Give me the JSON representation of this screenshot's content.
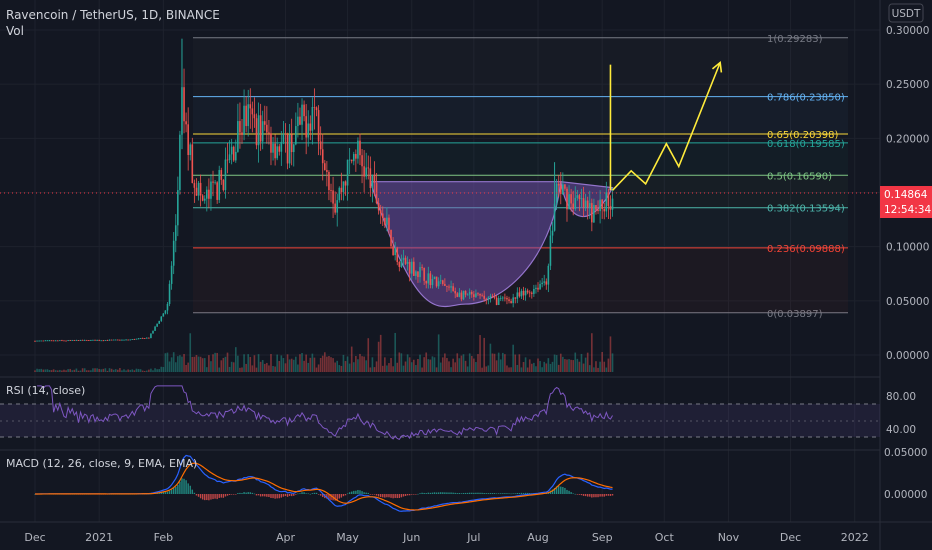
{
  "header": {
    "symbol": "Ravencoin / TetherUS, 1D, BINANCE",
    "vol_label": "Vol",
    "currency": "USDT"
  },
  "price_axis": {
    "ticks": [
      "0.30000",
      "0.25000",
      "0.20000",
      "0.15000",
      "0.10000",
      "0.05000",
      "0.00000"
    ],
    "current_price": "0.14864",
    "countdown": "12:54:34"
  },
  "fib_levels": [
    {
      "label": "1(0.29283)",
      "value": 0.29283,
      "color": "#787b86"
    },
    {
      "label": "0.786(0.23850)",
      "value": 0.2385,
      "color": "#64b5f6"
    },
    {
      "label": "0.65(0.20398)",
      "value": 0.20398,
      "color": "#fdd835"
    },
    {
      "label": "0.618(0.19585)",
      "value": 0.19585,
      "color": "#26a69a"
    },
    {
      "label": "0.5(0.16590)",
      "value": 0.1659,
      "color": "#81c784"
    },
    {
      "label": "0.382(0.13594)",
      "value": 0.13594,
      "color": "#4db6ac"
    },
    {
      "label": "0.236(0.09888)",
      "value": 0.09888,
      "color": "#f44336"
    },
    {
      "label": "0(0.03897)",
      "value": 0.03897,
      "color": "#787b86"
    }
  ],
  "rsi": {
    "label": "RSI (14, close)",
    "ticks": [
      "80.00",
      "40.00"
    ]
  },
  "macd": {
    "label": "MACD (12, 26, close, 9, EMA, EMA)",
    "ticks": [
      "0.05000",
      "0.00000"
    ]
  },
  "time_axis": {
    "labels": [
      "Dec",
      "2021",
      "Feb",
      "Apr",
      "May",
      "Jun",
      "Jul",
      "Aug",
      "Sep",
      "Oct",
      "Nov",
      "Dec",
      "2022"
    ]
  },
  "colors": {
    "up": "#26a69a",
    "down": "#ef5350",
    "projection": "#ffeb3b",
    "cup_fill": "#7e57c2",
    "current_price_bg": "#f23645"
  },
  "chart_data": {
    "type": "candlestick",
    "title": "Ravencoin / TetherUS, 1D, BINANCE",
    "ylim": [
      -0.005,
      0.305
    ],
    "approx_close_path": [
      {
        "x": "2020-12-01",
        "y": 0.013
      },
      {
        "x": "2021-01-15",
        "y": 0.014
      },
      {
        "x": "2021-01-25",
        "y": 0.016
      },
      {
        "x": "2021-02-03",
        "y": 0.045
      },
      {
        "x": "2021-02-07",
        "y": 0.12
      },
      {
        "x": "2021-02-10",
        "y": 0.23
      },
      {
        "x": "2021-02-15",
        "y": 0.17
      },
      {
        "x": "2021-02-20",
        "y": 0.14
      },
      {
        "x": "2021-03-01",
        "y": 0.16
      },
      {
        "x": "2021-03-12",
        "y": 0.22
      },
      {
        "x": "2021-04-01",
        "y": 0.19
      },
      {
        "x": "2021-04-15",
        "y": 0.23
      },
      {
        "x": "2021-04-25",
        "y": 0.14
      },
      {
        "x": "2021-05-05",
        "y": 0.19
      },
      {
        "x": "2021-05-12",
        "y": 0.16
      },
      {
        "x": "2021-05-25",
        "y": 0.09
      },
      {
        "x": "2021-06-10",
        "y": 0.07
      },
      {
        "x": "2021-06-25",
        "y": 0.055
      },
      {
        "x": "2021-07-15",
        "y": 0.05
      },
      {
        "x": "2021-07-25",
        "y": 0.055
      },
      {
        "x": "2021-08-05",
        "y": 0.07
      },
      {
        "x": "2021-08-10",
        "y": 0.155
      },
      {
        "x": "2021-08-20",
        "y": 0.14
      },
      {
        "x": "2021-08-28",
        "y": 0.13
      },
      {
        "x": "2021-09-06",
        "y": 0.14864
      }
    ],
    "projection_path": [
      {
        "x": "2021-09-06",
        "y": 0.152
      },
      {
        "x": "2021-09-15",
        "y": 0.17
      },
      {
        "x": "2021-09-22",
        "y": 0.158
      },
      {
        "x": "2021-10-02",
        "y": 0.195
      },
      {
        "x": "2021-10-08",
        "y": 0.174
      },
      {
        "x": "2021-10-28",
        "y": 0.27
      }
    ]
  }
}
